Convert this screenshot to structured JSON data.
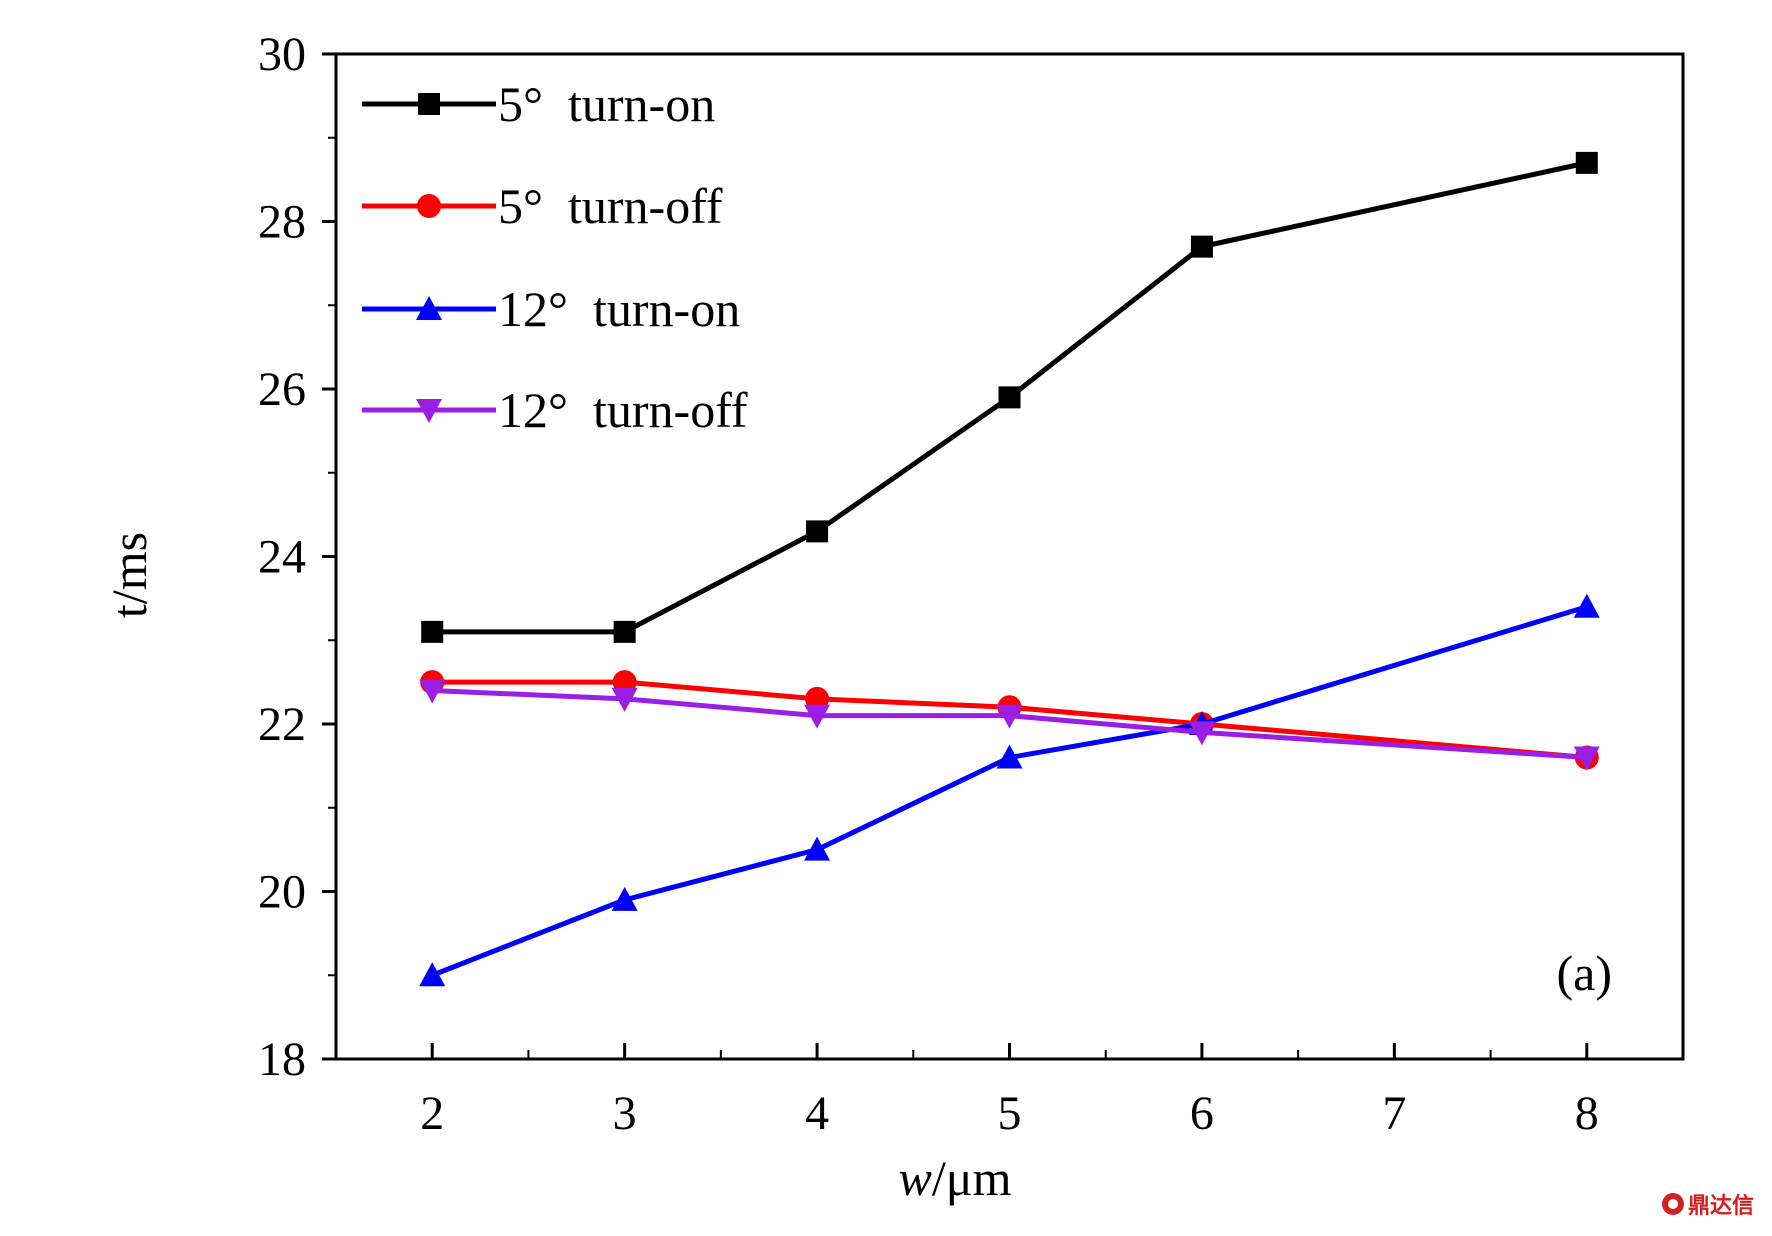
{
  "chart_data": {
    "type": "line",
    "xlabel_italic": "w",
    "xlabel_rest": "/μm",
    "ylabel": "t/ms",
    "xlim": [
      1.5,
      8.5
    ],
    "ylim": [
      18,
      30
    ],
    "x_ticks": [
      2,
      3,
      4,
      5,
      6,
      7,
      8
    ],
    "y_ticks": [
      18,
      20,
      22,
      24,
      26,
      28,
      30
    ],
    "x_tick_labels": [
      "2",
      "3",
      "4",
      "5",
      "6",
      "7",
      "8"
    ],
    "y_tick_labels": [
      "18",
      "20",
      "22",
      "24",
      "26",
      "28",
      "30"
    ],
    "x": [
      2,
      3,
      4,
      5,
      6,
      8
    ],
    "series": [
      {
        "name": "5°  turn-on",
        "color": "#000000",
        "marker": "square",
        "values": [
          23.1,
          23.1,
          24.3,
          25.9,
          27.7,
          28.7
        ]
      },
      {
        "name": "5°  turn-off",
        "color": "#ff0000",
        "marker": "circle",
        "values": [
          22.5,
          22.5,
          22.3,
          22.2,
          22.0,
          21.6
        ]
      },
      {
        "name": "12°  turn-on",
        "color": "#0000ff",
        "marker": "triangle-up",
        "values": [
          19.0,
          19.9,
          20.5,
          21.6,
          22.0,
          23.4
        ]
      },
      {
        "name": "12°  turn-off",
        "color": "#9a1ee6",
        "marker": "triangle-down",
        "values": [
          22.4,
          22.3,
          22.1,
          22.1,
          21.9,
          21.6
        ]
      }
    ],
    "legend_position": "top-left",
    "annotation": "(a)",
    "grid": false
  },
  "watermark": {
    "text": "鼎达信",
    "icon": "logo-icon"
  }
}
